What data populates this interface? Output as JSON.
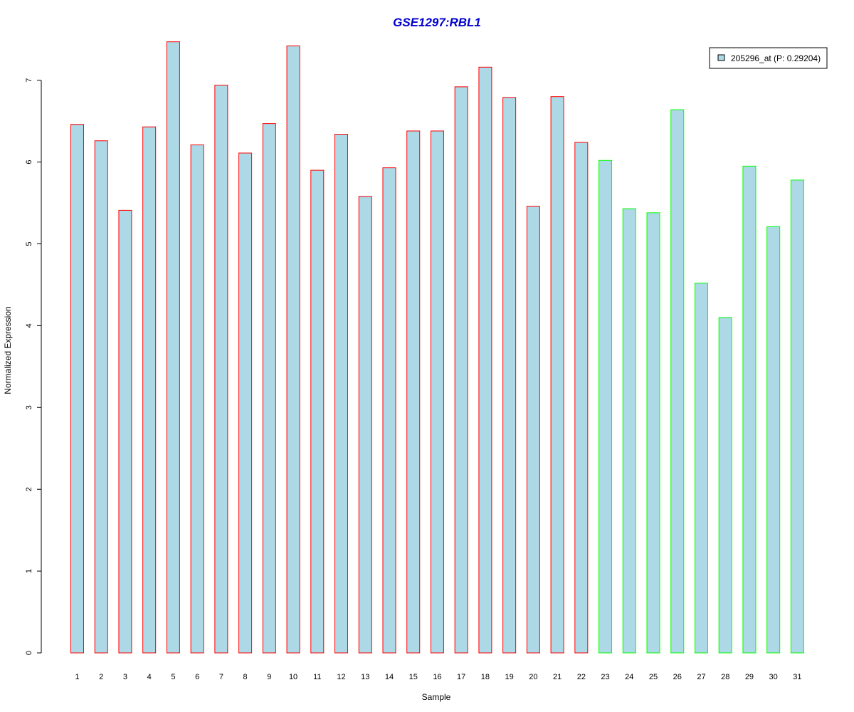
{
  "chart_data": {
    "type": "bar",
    "title": "GSE1297:RBL1",
    "xlabel": "Sample",
    "ylabel": "Normalized Expression",
    "categories": [
      "1",
      "2",
      "3",
      "4",
      "5",
      "6",
      "7",
      "8",
      "9",
      "10",
      "11",
      "12",
      "13",
      "14",
      "15",
      "16",
      "17",
      "18",
      "19",
      "20",
      "21",
      "22",
      "23",
      "24",
      "25",
      "26",
      "27",
      "28",
      "29",
      "30",
      "31"
    ],
    "series": [
      {
        "name": "205296_at (P: 0.29204)",
        "values": [
          6.46,
          6.26,
          5.41,
          6.43,
          7.47,
          6.21,
          6.94,
          6.11,
          6.47,
          7.42,
          5.9,
          6.34,
          5.58,
          5.93,
          6.38,
          6.38,
          6.92,
          7.16,
          6.79,
          5.46,
          6.8,
          6.24,
          6.02,
          5.43,
          5.38,
          6.64,
          4.52,
          4.1,
          5.95,
          5.21,
          5.78
        ],
        "groups": [
          "a",
          "a",
          "a",
          "a",
          "a",
          "a",
          "a",
          "a",
          "a",
          "a",
          "a",
          "a",
          "a",
          "a",
          "a",
          "a",
          "a",
          "a",
          "a",
          "a",
          "a",
          "a",
          "b",
          "b",
          "b",
          "b",
          "b",
          "b",
          "b",
          "b",
          "b"
        ]
      }
    ],
    "yticks": [
      "0",
      "1",
      "2",
      "3",
      "4",
      "5",
      "6",
      "7"
    ],
    "ylim": [
      0,
      7.47
    ],
    "legend_position": "top-right",
    "grid": false,
    "colors": {
      "bar_fill": "#add8e6",
      "group_a_border": "#ff0000",
      "group_b_border": "#00ff00",
      "title": "#0000cd",
      "axis": "#000000"
    }
  }
}
